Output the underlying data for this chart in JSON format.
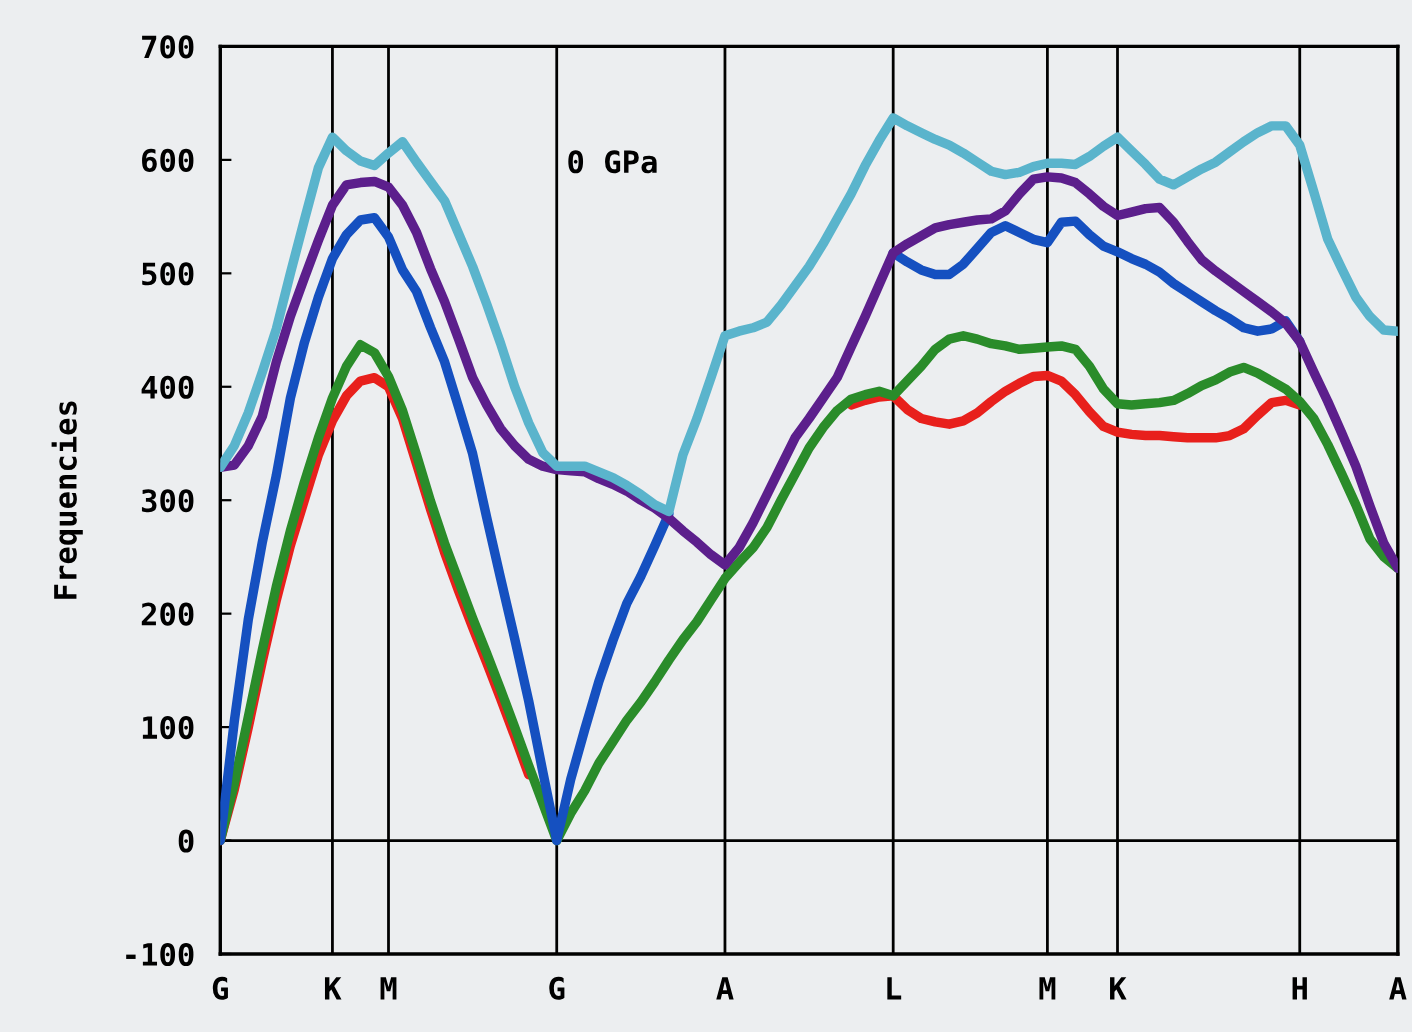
{
  "chart_data": {
    "type": "line",
    "ylabel": "Frequencies",
    "annotations": [
      "0 GPa"
    ],
    "categories": [
      "G",
      null,
      null,
      null,
      null,
      null,
      null,
      null,
      "K",
      null,
      null,
      null,
      "M",
      null,
      null,
      null,
      null,
      null,
      null,
      null,
      null,
      null,
      null,
      null,
      "G",
      null,
      null,
      null,
      null,
      null,
      null,
      null,
      null,
      null,
      null,
      null,
      "A",
      null,
      null,
      null,
      null,
      null,
      null,
      null,
      null,
      null,
      null,
      null,
      "L",
      null,
      null,
      null,
      null,
      null,
      null,
      null,
      null,
      null,
      null,
      "M",
      null,
      null,
      null,
      null,
      "K",
      null,
      null,
      null,
      null,
      null,
      null,
      null,
      null,
      null,
      null,
      null,
      null,
      "H",
      null,
      null,
      null,
      null,
      null,
      null,
      "A"
    ],
    "ylim": [
      -100,
      700
    ],
    "yticks": [
      -100,
      0,
      100,
      200,
      300,
      400,
      500,
      600,
      700
    ],
    "grid": "x",
    "ref_lines": [
      {
        "axis": "y",
        "value": 0,
        "color": "#000000"
      }
    ],
    "series": [
      {
        "color": "#e8201c",
        "values": [
          0,
          45,
          100,
          158,
          212,
          260,
          300,
          340,
          370,
          392,
          405,
          408,
          400,
          372,
          332,
          292,
          254,
          220,
          188,
          157,
          125,
          92,
          58,
          null,
          null,
          null,
          null,
          null,
          null,
          null,
          null,
          null,
          null,
          null,
          null,
          null,
          null,
          null,
          null,
          null,
          null,
          null,
          null,
          null,
          null,
          384,
          388,
          391,
          392,
          380,
          372,
          369,
          367,
          370,
          377,
          387,
          396,
          403,
          409,
          410,
          405,
          393,
          378,
          365,
          360,
          358,
          357,
          357,
          356,
          355,
          355,
          355,
          357,
          363,
          375,
          386,
          388,
          384,
          null,
          null,
          null,
          null,
          null,
          null,
          null
        ]
      },
      {
        "color": "#2a8c2a",
        "values": [
          0,
          50,
          109,
          168,
          224,
          273,
          316,
          355,
          390,
          418,
          437,
          430,
          409,
          379,
          340,
          299,
          262,
          229,
          196,
          165,
          133,
          100,
          66,
          33,
          0,
          24,
          44,
          68,
          87,
          106,
          122,
          140,
          159,
          177,
          193,
          212,
          231,
          245,
          258,
          276,
          300,
          323,
          346,
          364,
          379,
          389,
          393,
          396,
          392,
          405,
          418,
          433,
          442,
          445,
          442,
          438,
          436,
          433,
          434,
          435,
          436,
          433,
          418,
          398,
          385,
          384,
          385,
          386,
          388,
          394,
          401,
          406,
          413,
          417,
          412,
          405,
          398,
          387,
          372,
          349,
          323,
          296,
          266,
          250,
          240
        ]
      },
      {
        "color": "#1550c0",
        "values": [
          0,
          105,
          195,
          263,
          322,
          390,
          439,
          479,
          513,
          534,
          547,
          549,
          532,
          503,
          484,
          452,
          422,
          382,
          341,
          285,
          231,
          178,
          123,
          61,
          0,
          54,
          98,
          140,
          176,
          209,
          233,
          260,
          288,
          null,
          null,
          null,
          null,
          null,
          null,
          null,
          null,
          null,
          null,
          null,
          null,
          null,
          null,
          null,
          518,
          510,
          503,
          499,
          499,
          508,
          522,
          536,
          542,
          536,
          530,
          527,
          545,
          546,
          534,
          524,
          519,
          513,
          508,
          501,
          491,
          483,
          475,
          467,
          460,
          452,
          449,
          451,
          458,
          440,
          null,
          null,
          null,
          null,
          null,
          null,
          null
        ]
      },
      {
        "color": "#5c1f8c",
        "values": [
          329,
          331,
          348,
          374,
          422,
          462,
          496,
          529,
          560,
          578,
          580,
          581,
          576,
          560,
          536,
          504,
          475,
          442,
          408,
          384,
          363,
          348,
          336,
          330,
          327,
          326,
          325,
          319,
          314,
          308,
          300,
          293,
          284,
          273,
          263,
          252,
          243,
          258,
          280,
          305,
          330,
          355,
          372,
          390,
          408,
          435,
          462,
          490,
          518,
          526,
          533,
          540,
          543,
          545,
          547,
          548,
          555,
          570,
          583,
          585,
          584,
          580,
          570,
          559,
          551,
          554,
          557,
          558,
          545,
          528,
          512,
          502,
          493,
          484,
          475,
          466,
          456,
          440,
          413,
          387,
          359,
          330,
          295,
          262,
          240
        ]
      },
      {
        "color": "#5ab4cc",
        "values": [
          329,
          348,
          377,
          413,
          451,
          500,
          547,
          593,
          620,
          608,
          599,
          595,
          606,
          616,
          598,
          581,
          564,
          535,
          506,
          473,
          438,
          400,
          368,
          342,
          330,
          330,
          330,
          325,
          320,
          313,
          305,
          296,
          290,
          340,
          372,
          408,
          445,
          449,
          452,
          457,
          472,
          489,
          506,
          526,
          548,
          570,
          595,
          617,
          637,
          630,
          624,
          618,
          613,
          606,
          598,
          590,
          587,
          589,
          594,
          597,
          597,
          596,
          603,
          612,
          620,
          608,
          596,
          583,
          578,
          585,
          592,
          598,
          607,
          616,
          624,
          630,
          630,
          613,
          572,
          530,
          504,
          479,
          462,
          450,
          449
        ]
      }
    ]
  }
}
